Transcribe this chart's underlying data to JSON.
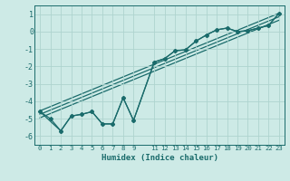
{
  "xlabel": "Humidex (Indice chaleur)",
  "bg_color": "#cdeae6",
  "grid_color": "#aed4cf",
  "line_color": "#1a6b6b",
  "xlim": [
    -0.5,
    23.5
  ],
  "ylim": [
    -6.5,
    1.5
  ],
  "yticks": [
    1,
    0,
    -1,
    -2,
    -3,
    -4,
    -5,
    -6
  ],
  "xticks": [
    0,
    1,
    2,
    3,
    4,
    5,
    6,
    7,
    8,
    9,
    11,
    12,
    13,
    14,
    15,
    16,
    17,
    18,
    19,
    20,
    21,
    22,
    23
  ],
  "curve1_x": [
    0,
    1,
    2,
    3,
    4,
    5,
    6,
    7,
    8,
    9,
    11,
    12,
    13,
    14,
    15,
    16,
    17,
    18,
    19,
    20,
    21,
    22,
    23
  ],
  "curve1_y": [
    -4.6,
    -5.0,
    -5.7,
    -4.85,
    -4.75,
    -4.6,
    -5.3,
    -5.3,
    -3.8,
    -5.1,
    -1.75,
    -1.55,
    -1.1,
    -1.05,
    -0.55,
    -0.2,
    0.1,
    0.2,
    0.0,
    0.05,
    0.2,
    0.35,
    1.05
  ],
  "curve2_x": [
    0,
    2,
    3,
    4,
    5,
    6,
    7,
    8,
    9,
    11,
    12,
    13,
    14,
    15,
    16,
    17,
    18,
    19,
    20,
    21,
    22,
    23
  ],
  "curve2_y": [
    -4.6,
    -5.7,
    -4.85,
    -4.75,
    -4.6,
    -5.3,
    -5.3,
    -3.8,
    -5.1,
    -1.75,
    -1.55,
    -1.1,
    -1.05,
    -0.55,
    -0.2,
    0.1,
    0.2,
    0.0,
    0.05,
    0.2,
    0.35,
    1.05
  ],
  "straight_lines": [
    {
      "x": [
        0,
        23
      ],
      "y": [
        -4.55,
        1.05
      ]
    },
    {
      "x": [
        0,
        23
      ],
      "y": [
        -4.75,
        0.85
      ]
    },
    {
      "x": [
        0,
        23
      ],
      "y": [
        -4.95,
        0.65
      ]
    }
  ]
}
